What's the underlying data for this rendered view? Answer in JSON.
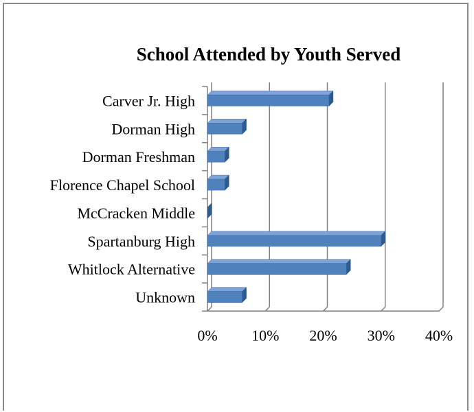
{
  "chart_data": {
    "type": "bar",
    "orientation": "horizontal",
    "style": "3d",
    "title": "School Attended by Youth Served",
    "xlabel": "",
    "ylabel": "",
    "categories": [
      "Carver Jr. High",
      "Dorman High",
      "Dorman Freshman",
      "Florence Chapel School",
      "McCracken Middle",
      "Spartanburg High",
      "Whitlock Alternative",
      "Unknown"
    ],
    "values": [
      0.21,
      0.06,
      0.03,
      0.03,
      0.0,
      0.3,
      0.24,
      0.06
    ],
    "xlim": [
      0,
      0.4
    ],
    "ticks": [
      0,
      0.1,
      0.2,
      0.3,
      0.4
    ],
    "tick_labels": [
      "0%",
      "10%",
      "20%",
      "30%",
      "40%"
    ],
    "grid": true,
    "legend": "none",
    "colors": {
      "bar_front": "#4f81bd",
      "bar_top": "#7ea3d6",
      "bar_side": "#2e5a8f",
      "grid": "#808080"
    }
  }
}
